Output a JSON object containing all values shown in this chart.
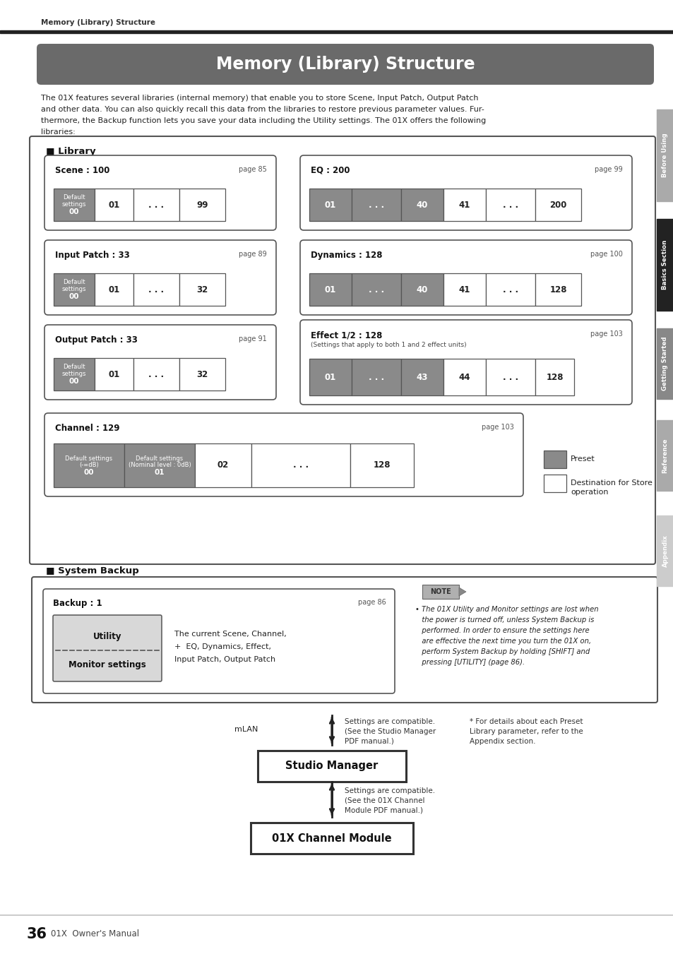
{
  "title": "Memory (Library) Structure",
  "bg_color": "#ffffff",
  "header_bg": "#6b6b6b",
  "body_text_lines": [
    "The 01X features several libraries (internal memory) that enable you to store Scene, Input Patch, Output Patch",
    "and other data. You can also quickly recall this data from the libraries to restore previous parameter values. Fur-",
    "thermore, the Backup function lets you save your data including the Utility settings. The 01X offers the following",
    "libraries:"
  ],
  "library_label": "■ Library",
  "system_backup_label": "■ System Backup",
  "preset_label": "Preset",
  "dest_label": "Destination for Store\noperation",
  "tab_label": "Memory (Library) Structure",
  "page_num": "36",
  "page_text": "01X  Owner's Manual",
  "sidebar_labels": [
    "Before Using",
    "Basics Section",
    "Getting Started",
    "Reference",
    "Appendix"
  ],
  "sidebar_y": [
    155,
    310,
    465,
    595,
    730
  ],
  "sidebar_h": [
    130,
    130,
    100,
    100,
    100
  ],
  "scene_title": "Scene : 100",
  "scene_page": "page 85",
  "eq_title": "EQ : 200",
  "eq_page": "page 99",
  "input_title": "Input Patch : 33",
  "input_page": "page 89",
  "dynamics_title": "Dynamics : 128",
  "dynamics_page": "page 100",
  "output_title": "Output Patch : 33",
  "output_page": "page 91",
  "effect_title": "Effect 1/2 : 128",
  "effect_page": "page 103",
  "effect_sub": "(Settings that apply to both 1 and 2 effect units)",
  "channel_title": "Channel : 129",
  "channel_page": "page 103",
  "backup_title": "Backup : 1",
  "backup_page": "page 86",
  "note_text": "The 01X Utility and Monitor settings are lost when\nthe power is turned off, unless System Backup is\nperformed. In order to ensure the settings here\nare effective the next time you turn the 01X on,\nperform System Backup by holding [SHIFT] and\npressing [UTILITY] (page 86).",
  "backup_line1": "The current Scene, Channel,",
  "backup_line2": "+  EQ, Dynamics, Effect,",
  "backup_line3": "Input Patch, Output Patch",
  "studio_manager_text": "Studio Manager",
  "channel_module_text": "01X Channel Module",
  "mlan_text": "mLAN",
  "settings_compat1_lines": [
    "Settings are compatible.",
    "(See the Studio Manager",
    "PDF manual.)"
  ],
  "settings_compat2_lines": [
    "Settings are compatible.",
    "(See the 01X Channel",
    "Module PDF manual.)"
  ],
  "preset_note_lines": [
    "* For details about each Preset",
    "Library parameter, refer to the",
    "Appendix section."
  ]
}
